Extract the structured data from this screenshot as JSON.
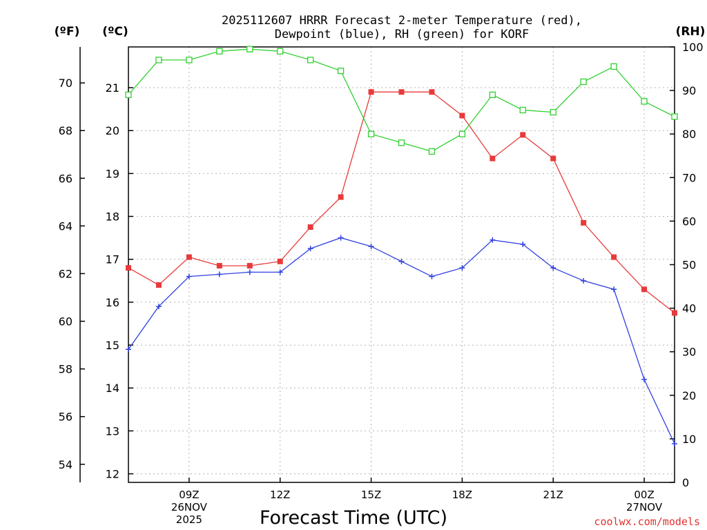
{
  "chart_data": {
    "type": "line",
    "title_lines": [
      "2025112607 HRRR Forecast 2-meter Temperature (red),",
      "Dewpoint (blue), RH (green) for KORF"
    ],
    "xlabel": "Forecast Time (UTC)",
    "credit": "coolwx.com/models",
    "unit_labels": {
      "fahrenheit": "(ºF)",
      "celsius": "(ºC)",
      "rh": "(RH)"
    },
    "axes": {
      "celsius": {
        "ticks": [
          12,
          13,
          14,
          15,
          16,
          17,
          18,
          19,
          20,
          21
        ]
      },
      "fahrenheit": {
        "ticks": [
          54,
          56,
          58,
          60,
          62,
          64,
          66,
          68,
          70
        ]
      },
      "rh": {
        "range": [
          0,
          100
        ],
        "ticks": [
          0,
          10,
          20,
          30,
          40,
          50,
          60,
          70,
          80,
          90,
          100
        ]
      }
    },
    "x": [
      "07Z",
      "08Z",
      "09Z",
      "10Z",
      "11Z",
      "12Z",
      "13Z",
      "14Z",
      "15Z",
      "16Z",
      "17Z",
      "18Z",
      "19Z",
      "20Z",
      "21Z",
      "22Z",
      "23Z",
      "00Z",
      "01Z"
    ],
    "x_tick_labels": [
      {
        "at": "09Z",
        "lines": [
          "09Z",
          "26NOV",
          "2025"
        ]
      },
      {
        "at": "12Z",
        "lines": [
          "12Z"
        ]
      },
      {
        "at": "15Z",
        "lines": [
          "15Z"
        ]
      },
      {
        "at": "18Z",
        "lines": [
          "18Z"
        ]
      },
      {
        "at": "21Z",
        "lines": [
          "21Z"
        ]
      },
      {
        "at": "00Z",
        "lines": [
          "00Z",
          "27NOV"
        ]
      }
    ],
    "grid": true,
    "series": [
      {
        "key": "temperature",
        "axis": "celsius",
        "color": "#e83a3a",
        "marker": "filled-square",
        "values": [
          16.8,
          16.4,
          17.05,
          16.85,
          16.85,
          16.95,
          17.75,
          18.45,
          20.9,
          20.9,
          20.9,
          20.35,
          19.35,
          19.9,
          19.35,
          17.85,
          17.05,
          16.3,
          15.75
        ]
      },
      {
        "key": "dewpoint",
        "axis": "celsius",
        "color": "#3040e0",
        "marker": "plus",
        "values": [
          14.9,
          15.9,
          16.6,
          16.65,
          16.7,
          16.7,
          17.25,
          17.5,
          17.3,
          16.95,
          16.6,
          16.8,
          17.45,
          17.35,
          16.8,
          16.5,
          16.3,
          14.2,
          12.7
        ]
      },
      {
        "key": "rh",
        "axis": "rh",
        "color": "#30d030",
        "marker": "open-square",
        "values": [
          89,
          97,
          97,
          99,
          99.5,
          99,
          97,
          94.5,
          80,
          78,
          76,
          80,
          89,
          85.5,
          85,
          92,
          95.5,
          87.5,
          84
        ]
      }
    ]
  }
}
